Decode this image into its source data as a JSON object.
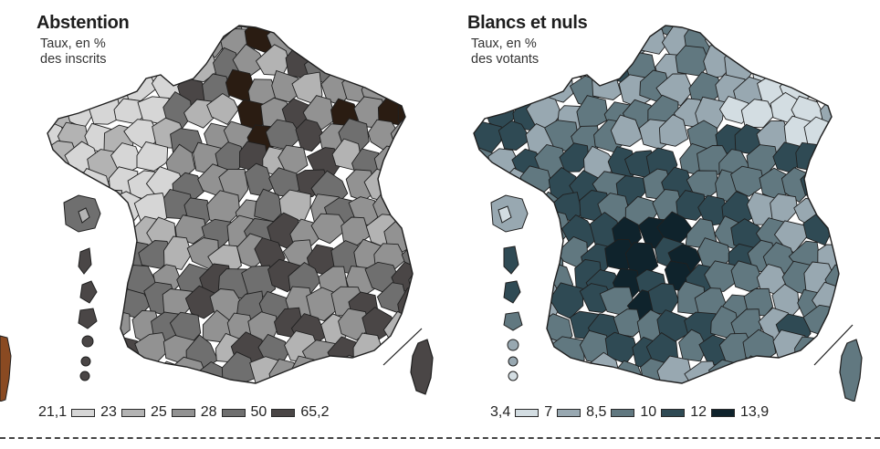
{
  "maps": [
    {
      "id": "abstention",
      "title": "Abstention",
      "subtitle_lines": [
        "Taux, en %",
        "des inscrits"
      ],
      "legend": {
        "thresholds": [
          "21,1",
          "23",
          "25",
          "28",
          "50",
          "65,2"
        ],
        "colors": [
          "#d6d6d6",
          "#b3b3b3",
          "#929292",
          "#6f6f6f",
          "#4a4646",
          "#2a1c12"
        ]
      }
    },
    {
      "id": "blancs-et-nuls",
      "title": "Blancs et nuls",
      "subtitle_lines": [
        "Taux, en %",
        "des votants"
      ],
      "legend": {
        "thresholds": [
          "3,4",
          "7",
          "8,5",
          "10",
          "12",
          "13,9"
        ],
        "colors": [
          "#d3dde2",
          "#98a8b1",
          "#617880",
          "#2f4a54",
          "#0f232c"
        ]
      }
    }
  ],
  "colors": {
    "border": "#1f1f1f",
    "divider": "#444444",
    "left_edge_accent": "#8a4a22"
  }
}
